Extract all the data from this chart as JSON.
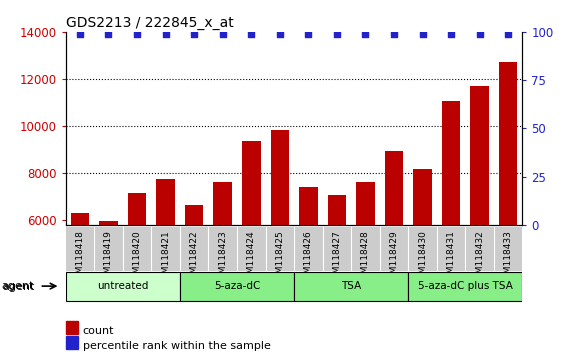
{
  "title": "GDS2213 / 222845_x_at",
  "samples": [
    "GSM118418",
    "GSM118419",
    "GSM118420",
    "GSM118421",
    "GSM118422",
    "GSM118423",
    "GSM118424",
    "GSM118425",
    "GSM118426",
    "GSM118427",
    "GSM118428",
    "GSM118429",
    "GSM118430",
    "GSM118431",
    "GSM118432",
    "GSM118433"
  ],
  "counts": [
    6300,
    5980,
    7150,
    7750,
    6650,
    7600,
    9350,
    9850,
    7400,
    7050,
    7600,
    8950,
    8150,
    11050,
    11700,
    12700
  ],
  "percentile_ranks": [
    99,
    99,
    99,
    99,
    99,
    99,
    99,
    99,
    99,
    99,
    99,
    99,
    99,
    99,
    99,
    99
  ],
  "bar_color": "#bb0000",
  "dot_color": "#2222cc",
  "ylim_left": [
    5800,
    14000
  ],
  "ylim_right": [
    0,
    100
  ],
  "yticks_left": [
    6000,
    8000,
    10000,
    12000,
    14000
  ],
  "yticks_right": [
    0,
    25,
    50,
    75,
    100
  ],
  "groups": [
    {
      "label": "untreated",
      "start": 0,
      "end": 4
    },
    {
      "label": "5-aza-dC",
      "start": 4,
      "end": 8
    },
    {
      "label": "TSA",
      "start": 8,
      "end": 12
    },
    {
      "label": "5-aza-dC plus TSA",
      "start": 12,
      "end": 16
    }
  ],
  "group_colors": [
    "#ccffcc",
    "#88ee88",
    "#88ee88",
    "#88ee88"
  ],
  "agent_label": "agent",
  "legend_count_color": "#bb0000",
  "legend_pct_color": "#2222cc",
  "ticklabel_color_left": "#cc0000",
  "ticklabel_color_right": "#2222cc",
  "xticklabel_bg": "#cccccc",
  "bar_bottom": 5800
}
